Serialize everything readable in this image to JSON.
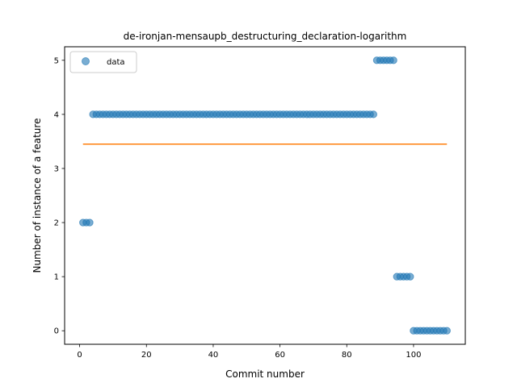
{
  "chart_data": {
    "type": "scatter",
    "title": "de-ironjan-mensaupb_destructuring_declaration-logarithm",
    "xlabel": "Commit number",
    "ylabel": "Number of instance of a feature",
    "xlim": [
      -4.5,
      115.5
    ],
    "ylim": [
      -0.25,
      5.25
    ],
    "xticks": [
      0,
      20,
      40,
      60,
      80,
      100
    ],
    "yticks": [
      0,
      1,
      2,
      3,
      4,
      5
    ],
    "grid": false,
    "legend": {
      "position": "top-left",
      "entries": [
        "data"
      ]
    },
    "colors": {
      "data": "#1f77b4",
      "fit": "#ff7f0e"
    },
    "series": [
      {
        "name": "data",
        "kind": "scatter",
        "runs": [
          {
            "x_start": 1,
            "x_end": 3,
            "y": 2
          },
          {
            "x_start": 4,
            "x_end": 88,
            "y": 4
          },
          {
            "x_start": 89,
            "x_end": 94,
            "y": 5
          },
          {
            "x_start": 95,
            "x_end": 99,
            "y": 1
          },
          {
            "x_start": 100,
            "x_end": 110,
            "y": 0
          }
        ]
      },
      {
        "kind": "line",
        "x": [
          1,
          110
        ],
        "y": [
          3.45,
          3.45
        ]
      }
    ]
  }
}
